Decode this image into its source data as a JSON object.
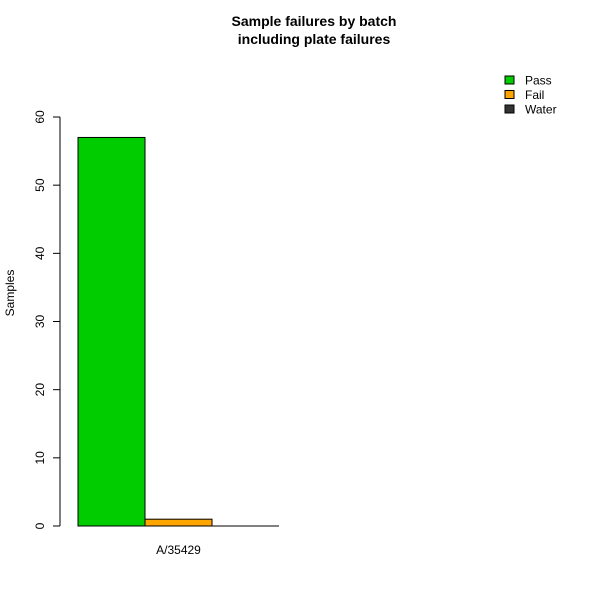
{
  "chart_data": {
    "type": "bar",
    "title": "Sample failures by batch",
    "subtitle": "including plate failures",
    "xlabel": "",
    "ylabel": "Samples",
    "categories": [
      "A/35429"
    ],
    "series": [
      {
        "name": "Pass",
        "values": [
          57
        ],
        "color": "#00cc00"
      },
      {
        "name": "Fail",
        "values": [
          1
        ],
        "color": "#ffa500"
      },
      {
        "name": "Water",
        "values": [
          0
        ],
        "color": "#333333"
      }
    ],
    "ylim": [
      0,
      60
    ],
    "yticks": [
      0,
      10,
      20,
      30,
      40,
      50,
      60
    ],
    "grid": false,
    "legend_position": "top-right"
  }
}
